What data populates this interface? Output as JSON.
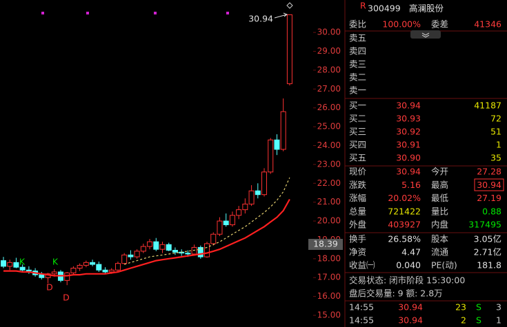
{
  "chart_data": {
    "type": "candlestick",
    "ylim": [
      14.38,
      31.72
    ],
    "yticks": [
      {
        "value": 15,
        "label": "15.00"
      },
      {
        "value": 16,
        "label": "16.00"
      },
      {
        "value": 17,
        "label": "17.00"
      },
      {
        "value": 18,
        "label": "18.00"
      },
      {
        "value": 19,
        "label": "19.00"
      },
      {
        "value": 20,
        "label": "20.00"
      },
      {
        "value": 21,
        "label": "21.00"
      },
      {
        "value": 22,
        "label": "22.00"
      },
      {
        "value": 23,
        "label": "23.00"
      },
      {
        "value": 24,
        "label": "24.00"
      },
      {
        "value": 25,
        "label": "25.00"
      },
      {
        "value": 26,
        "label": "26.00"
      },
      {
        "value": 27,
        "label": "27.00"
      },
      {
        "value": 28,
        "label": "28.00"
      },
      {
        "value": 29,
        "label": "29.00"
      },
      {
        "value": 30,
        "label": "30.00"
      }
    ],
    "open": [
      17.9,
      17.6,
      17.8,
      17.55,
      17.4,
      17.35,
      17.15,
      17.0,
      17.2,
      17.3,
      16.85,
      17.25,
      17.5,
      17.65,
      17.8,
      17.7,
      17.4,
      17.3,
      17.4,
      17.75,
      18.2,
      18.1,
      18.4,
      18.65,
      18.9,
      18.5,
      18.75,
      18.45,
      18.35,
      18.3,
      18.25,
      18.6,
      18.1,
      18.8,
      19.3,
      20.0,
      19.8,
      20.3,
      20.6,
      20.9,
      21.6,
      21.4,
      22.6,
      24.3,
      23.8,
      27.28
    ],
    "high": [
      18.1,
      17.95,
      18.05,
      17.7,
      17.6,
      17.5,
      17.3,
      17.25,
      17.45,
      17.4,
      17.3,
      17.6,
      17.75,
      17.9,
      17.95,
      17.85,
      17.55,
      17.5,
      17.85,
      18.3,
      18.45,
      18.5,
      18.8,
      19.05,
      19.1,
      18.9,
      18.85,
      18.6,
      18.5,
      18.45,
      18.75,
      18.7,
      18.9,
      19.4,
      20.2,
      20.4,
      20.5,
      20.8,
      21.2,
      21.9,
      22.0,
      22.8,
      24.4,
      24.6,
      26.5,
      30.94
    ],
    "low": [
      17.5,
      17.4,
      17.5,
      17.3,
      17.2,
      17.05,
      16.9,
      16.7,
      17.05,
      16.75,
      16.6,
      17.15,
      17.35,
      17.55,
      17.6,
      17.3,
      17.2,
      17.2,
      17.3,
      17.7,
      17.95,
      18.0,
      18.3,
      18.5,
      18.4,
      18.3,
      18.4,
      18.2,
      18.15,
      18.1,
      18.2,
      18.0,
      18.05,
      18.7,
      19.2,
      19.7,
      19.7,
      20.1,
      20.4,
      20.8,
      21.2,
      21.3,
      22.5,
      23.5,
      23.7,
      27.19
    ],
    "close": [
      17.6,
      17.8,
      17.55,
      17.4,
      17.35,
      17.15,
      17.0,
      17.2,
      17.3,
      16.85,
      17.25,
      17.5,
      17.65,
      17.8,
      17.7,
      17.4,
      17.3,
      17.4,
      17.75,
      18.2,
      18.1,
      18.4,
      18.65,
      18.9,
      18.5,
      18.75,
      18.45,
      18.35,
      18.3,
      18.25,
      18.6,
      18.1,
      18.8,
      19.3,
      20.0,
      19.8,
      20.3,
      20.6,
      20.9,
      21.6,
      21.4,
      22.6,
      24.3,
      23.8,
      25.8,
      30.94
    ],
    "series": [
      {
        "color": "#ff2020",
        "values": [
          17.35,
          17.35,
          17.35,
          17.3,
          17.3,
          17.25,
          17.2,
          17.15,
          17.1,
          17.1,
          17.1,
          17.15,
          17.15,
          17.2,
          17.2,
          17.2,
          17.2,
          17.25,
          17.3,
          17.4,
          17.5,
          17.6,
          17.7,
          17.8,
          17.9,
          17.95,
          18.0,
          18.05,
          18.1,
          18.15,
          18.2,
          18.25,
          18.3,
          18.4,
          18.5,
          18.65,
          18.8,
          18.95,
          19.1,
          19.3,
          19.5,
          19.7,
          19.95,
          20.2,
          20.55,
          21.15
        ]
      },
      {
        "color": "#e6d070",
        "values": [
          null,
          null,
          null,
          null,
          null,
          null,
          null,
          null,
          null,
          null,
          null,
          null,
          null,
          null,
          null,
          null,
          null,
          null,
          null,
          17.7,
          17.8,
          17.9,
          18.0,
          18.1,
          18.15,
          18.2,
          18.25,
          18.3,
          18.35,
          18.4,
          18.45,
          18.5,
          18.6,
          18.75,
          18.9,
          19.1,
          19.3,
          19.5,
          19.7,
          19.95,
          20.2,
          20.45,
          20.75,
          21.1,
          21.55,
          22.3
        ]
      }
    ],
    "markers": [
      "K",
      "K",
      "D",
      "D"
    ],
    "high_label": "30.94",
    "cursor_label": "18.39"
  },
  "quote": {
    "header": {
      "badge": "R",
      "code": "300499",
      "name": "高澜股份"
    },
    "ratio": [
      "委比",
      "100.00%",
      "委差",
      "41346"
    ],
    "sell": [
      "卖五",
      "卖四",
      "卖三",
      "卖二",
      "卖一"
    ],
    "buy": [
      [
        "买一",
        "30.94",
        "41187"
      ],
      [
        "买二",
        "30.93",
        "72"
      ],
      [
        "买三",
        "30.92",
        "51"
      ],
      [
        "买四",
        "30.91",
        "1"
      ],
      [
        "买五",
        "30.90",
        "35"
      ]
    ],
    "stats": [
      [
        "现价",
        "30.94",
        "今开",
        "27.28"
      ],
      [
        "涨跌",
        "5.16",
        "最高",
        "30.94"
      ],
      [
        "涨幅",
        "20.02%",
        "最低",
        "27.19"
      ],
      [
        "总量",
        "721422",
        "量比",
        "0.88"
      ],
      [
        "外盘",
        "403927",
        "内盘",
        "317495"
      ]
    ],
    "stats2": [
      [
        "换手",
        "26.58%",
        "股本",
        "3.05亿"
      ],
      [
        "净资",
        "4.47",
        "流通",
        "2.71亿"
      ],
      [
        "收益㈠",
        "0.040",
        "PE(动)",
        "181.8"
      ]
    ],
    "status": "交易状态: 闭市阶段 15:30:00",
    "after_hours": "盘后交易量: 9  额: 2.8万",
    "trades": [
      [
        "14:55",
        "30.94",
        "23",
        "S",
        "3"
      ],
      [
        "14:55",
        "30.94",
        "2",
        "S",
        "1"
      ]
    ]
  }
}
